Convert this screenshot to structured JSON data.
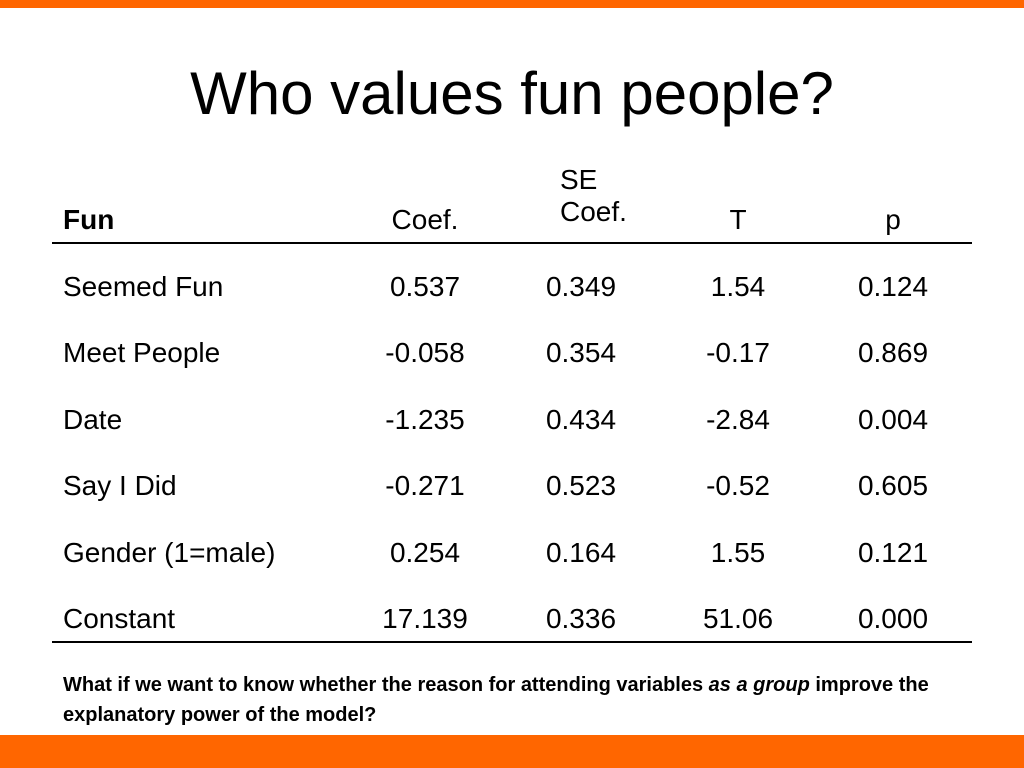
{
  "title": "Who values fun people?",
  "table": {
    "header": [
      "Fun",
      "Coef.",
      "SE Coef.",
      "T",
      "p"
    ],
    "rows": [
      [
        "Seemed Fun",
        "0.537",
        "0.349",
        "1.54",
        "0.124"
      ],
      [
        "Meet People",
        "-0.058",
        "0.354",
        "-0.17",
        "0.869"
      ],
      [
        "Date",
        "-1.235",
        "0.434",
        "-2.84",
        "0.004"
      ],
      [
        "Say I Did",
        "-0.271",
        "0.523",
        "-0.52",
        "0.605"
      ],
      [
        "Gender (1=male)",
        "0.254",
        "0.164",
        "1.55",
        "0.121"
      ],
      [
        "Constant",
        "17.139",
        "0.336",
        "51.06",
        "0.000"
      ]
    ]
  },
  "footnote": {
    "parts": [
      "What if we want to know whether the reason for attending variables",
      "as a group",
      "improve the explanatory power of the model?"
    ]
  }
}
